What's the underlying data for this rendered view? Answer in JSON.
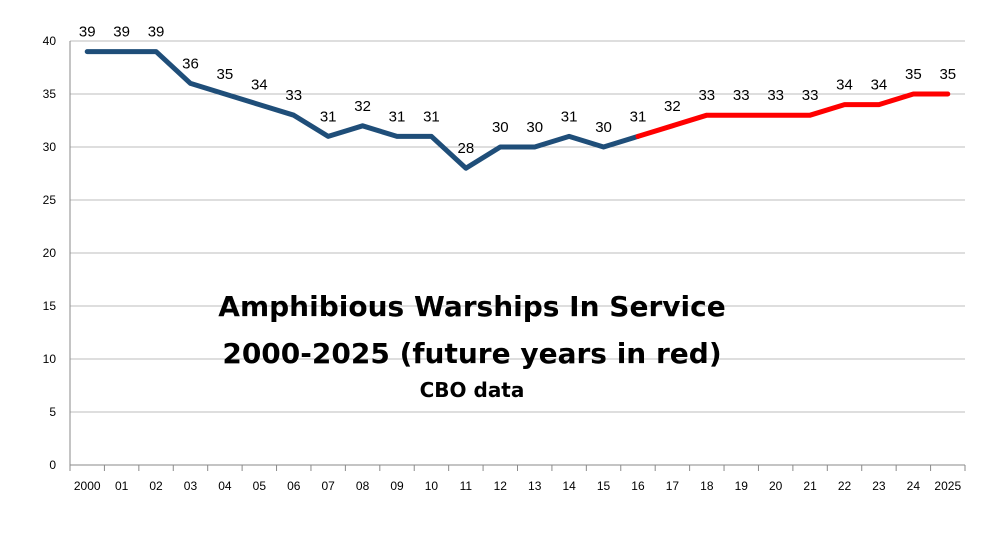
{
  "chart_data": {
    "type": "line",
    "title_line1": "Amphibious Warships In Service",
    "title_line2": "2000-2025 (future years in red)",
    "subtitle": "CBO data",
    "xlabel": "",
    "ylabel": "",
    "categories": [
      "2000",
      "01",
      "02",
      "03",
      "04",
      "05",
      "06",
      "07",
      "08",
      "09",
      "10",
      "11",
      "12",
      "13",
      "14",
      "15",
      "16",
      "17",
      "18",
      "19",
      "20",
      "21",
      "22",
      "23",
      "24",
      "2025"
    ],
    "values": [
      39,
      39,
      39,
      36,
      35,
      34,
      33,
      31,
      32,
      31,
      31,
      28,
      30,
      30,
      31,
      30,
      31,
      32,
      33,
      33,
      33,
      33,
      34,
      34,
      35,
      35
    ],
    "future_start_index": 16,
    "ylim": [
      0,
      40
    ],
    "yticks": [
      0,
      5,
      10,
      15,
      20,
      25,
      30,
      35,
      40
    ],
    "grid": true,
    "legend": "none",
    "colors": {
      "past": "#1f4e79",
      "future": "#ff0000",
      "grid": "#bdbdbd"
    }
  }
}
